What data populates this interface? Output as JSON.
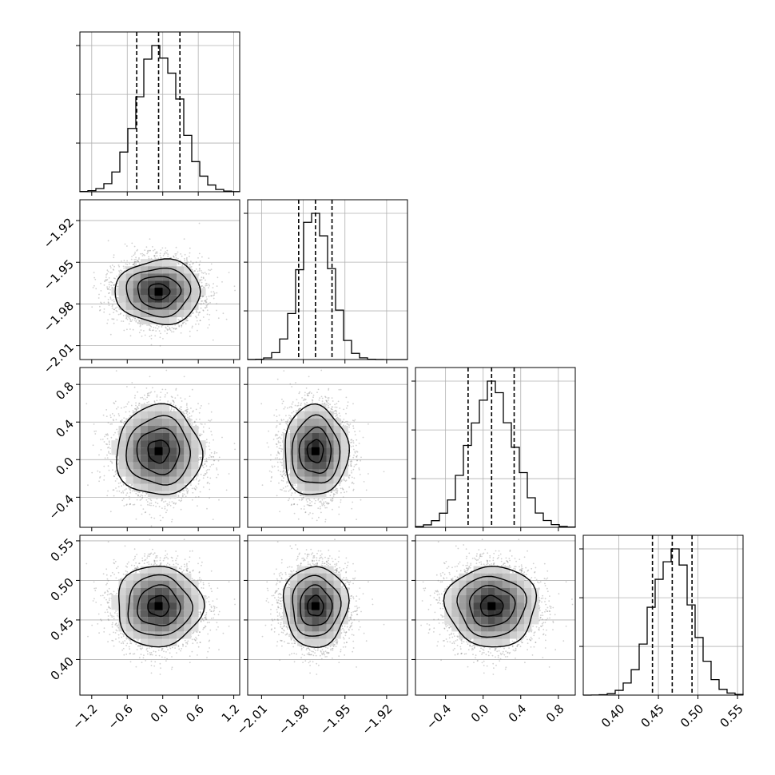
{
  "chart_data": {
    "type": "corner",
    "params": [
      {
        "mean": -0.07,
        "sigma": 0.36,
        "range": [
          -1.4,
          1.3
        ],
        "ticks": [
          -1.2,
          -0.6,
          0.0,
          0.6,
          1.2
        ],
        "tick_labels": [
          "−1.2",
          "−0.6",
          "0.0",
          "0.6",
          "1.2"
        ],
        "quantiles": [
          -0.44,
          -0.07,
          0.29
        ]
      },
      {
        "mean": -1.9712,
        "sigma": 0.0115,
        "range": [
          -2.02,
          -1.905
        ],
        "ticks": [
          -2.01,
          -1.98,
          -1.95,
          -1.92
        ],
        "tick_labels": [
          "−2.01",
          "−1.98",
          "−1.95",
          "−1.92"
        ],
        "quantiles": [
          -1.9833,
          -1.9712,
          -1.9593
        ]
      },
      {
        "mean": 0.09,
        "sigma": 0.24,
        "range": [
          -0.72,
          0.98
        ],
        "ticks": [
          -0.4,
          0.0,
          0.4,
          0.8
        ],
        "tick_labels": [
          "−0.4",
          "0.0",
          "0.4",
          "0.8"
        ],
        "quantiles": [
          -0.16,
          0.09,
          0.33
        ]
      },
      {
        "mean": 0.4675,
        "sigma": 0.0255,
        "range": [
          0.355,
          0.557
        ],
        "ticks": [
          0.4,
          0.45,
          0.5,
          0.55
        ],
        "tick_labels": [
          "0.40",
          "0.45",
          "0.50",
          "0.55"
        ],
        "quantiles": [
          0.4425,
          0.4675,
          0.4925
        ]
      }
    ],
    "grid": true,
    "n_bins": 20,
    "n_samples": 8000
  }
}
